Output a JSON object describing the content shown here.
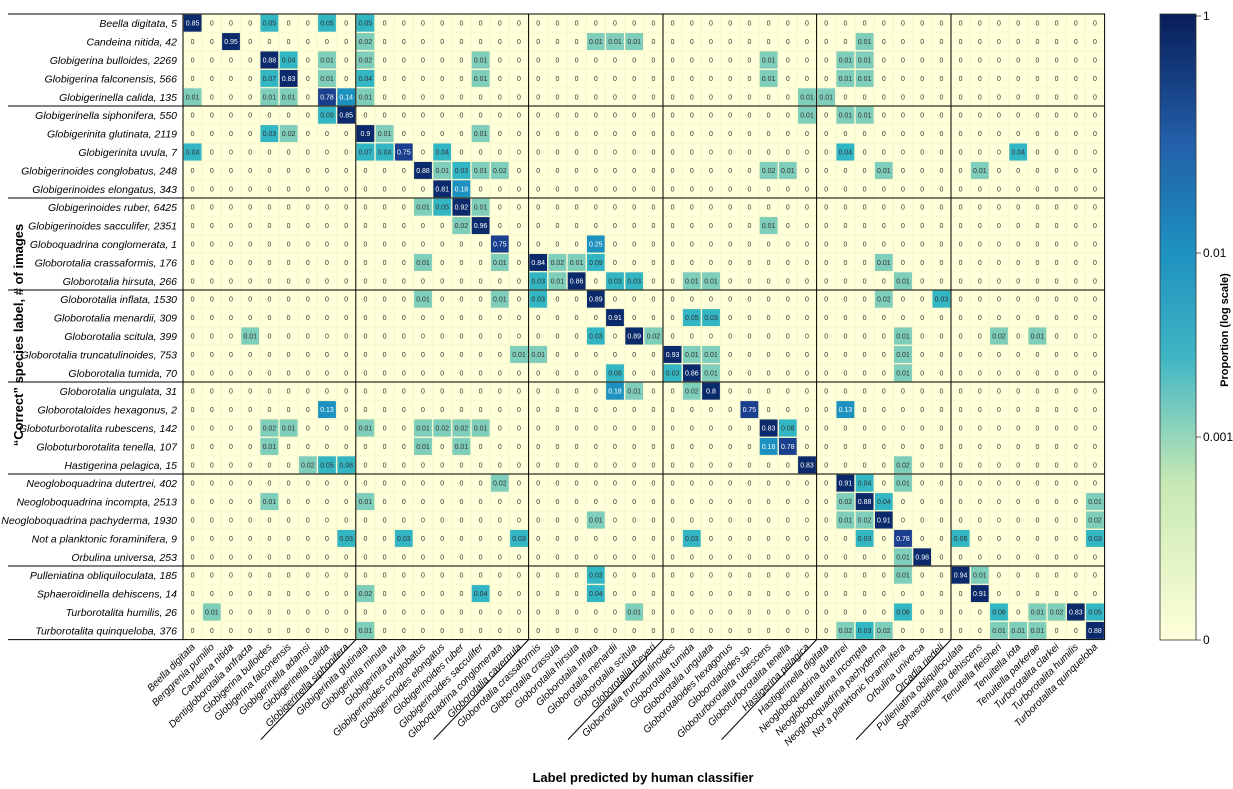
{
  "chart_data": {
    "type": "heatmap",
    "title": "",
    "xlabel": "Label predicted by human classifier",
    "ylabel": "“Correct” species label, # of images",
    "colorbar": {
      "label": "Proportion (log scale)",
      "ticks": [
        "1",
        "0.01",
        "0.001",
        "0"
      ],
      "scale": "log",
      "colors": [
        "#ffffd9",
        "#c7e9b4",
        "#41b6c4",
        "#1d91c0",
        "#225ea8",
        "#081d58"
      ]
    },
    "columns": [
      "Beella digitata",
      "Berggrenia pumilio",
      "Candeina nitida",
      "Dentigloborotalia anfracta",
      "Globigerina bulloides",
      "Globigerina falconensis",
      "Globigerinella adamsi",
      "Globigerinella calida",
      "Globigerinella siphonifera",
      "Globigerinita glutinata",
      "Globigerinita minuta",
      "Globigerinita uvula",
      "Globigerinoides conglobatus",
      "Globigerinoides elongatus",
      "Globigerinoides ruber",
      "Globigerinoides sacculifer",
      "Globoquadrina conglomerata",
      "Globorotalia cavernula",
      "Globorotalia crassaformis",
      "Globorotalia crassula",
      "Globorotalia hirsuta",
      "Globorotalia inflata",
      "Globorotalia menardii",
      "Globorotalia scitula",
      "Globorotalia theyeri",
      "Globorotalia truncatulinoides",
      "Globorotalia tumida",
      "Globorotalia ungulata",
      "Globorotaloides hexagonus",
      "Globorotaloides sp.",
      "Globoturborotalita rubescens",
      "Globoturborotalita tenella",
      "Hastigerina pelagica",
      "Hastigerinella digitata",
      "Neogloboquadrina dutertrei",
      "Neogloboquadrina incompta",
      "Neogloboquadrina pachyderma",
      "Not a planktonic foraminifera",
      "Orbulina universa",
      "Orcadia riedeli",
      "Pulleniatina obliquiloculata",
      "Sphaeroidinella dehiscens",
      "Tenuitella fleisheri",
      "Tenuitella iota",
      "Tenuitella parkerae",
      "Turborotalita clarkei",
      "Turborotalita humilis",
      "Turborotalita quinqueloba"
    ],
    "rows": [
      {
        "label": "Beella digitata, 5",
        "cells": [
          [
            0,
            "0.85"
          ],
          [
            4,
            "0.05"
          ],
          [
            7,
            "0.05"
          ],
          [
            9,
            "0.05"
          ]
        ]
      },
      {
        "label": "Candeina nitida, 42",
        "cells": [
          [
            2,
            "0.95"
          ],
          [
            9,
            "0.02"
          ],
          [
            21,
            "0.01"
          ],
          [
            22,
            "0.01"
          ],
          [
            23,
            "0.01"
          ],
          [
            35,
            "0.01"
          ]
        ]
      },
      {
        "label": "Globigerina bulloides, 2269",
        "cells": [
          [
            4,
            "0.88"
          ],
          [
            5,
            "0.04"
          ],
          [
            7,
            "0.01"
          ],
          [
            9,
            "0.02"
          ],
          [
            15,
            "0.01"
          ],
          [
            30,
            "0.01"
          ],
          [
            34,
            "0.01"
          ],
          [
            35,
            "0.01"
          ]
        ]
      },
      {
        "label": "Globigerina falconensis, 566",
        "cells": [
          [
            4,
            "0.07"
          ],
          [
            5,
            "0.83"
          ],
          [
            7,
            "0.01"
          ],
          [
            9,
            "0.04"
          ],
          [
            15,
            "0.01"
          ],
          [
            30,
            "0.01"
          ],
          [
            34,
            "0.01"
          ],
          [
            35,
            "0.01"
          ]
        ]
      },
      {
        "label": "Globigerinella calida, 135",
        "cells": [
          [
            0,
            "0.01"
          ],
          [
            4,
            "0.01"
          ],
          [
            5,
            "0.01"
          ],
          [
            7,
            "0.78"
          ],
          [
            8,
            "0.14"
          ],
          [
            9,
            "0.01"
          ],
          [
            32,
            "0.01"
          ],
          [
            33,
            "0.01"
          ]
        ]
      },
      {
        "label": "Globigerinella siphonifera, 550",
        "cells": [
          [
            7,
            "0.09"
          ],
          [
            8,
            "0.85"
          ],
          [
            32,
            "0.01"
          ],
          [
            34,
            "0.01"
          ],
          [
            35,
            "0.01"
          ]
        ]
      },
      {
        "label": "Globigerinita glutinata, 2119",
        "cells": [
          [
            4,
            "0.03"
          ],
          [
            5,
            "0.02"
          ],
          [
            9,
            "0.9"
          ],
          [
            10,
            "0.01"
          ],
          [
            15,
            "0.01"
          ]
        ]
      },
      {
        "label": "Globigerinita uvula, 7",
        "cells": [
          [
            0,
            "0.04"
          ],
          [
            9,
            "0.07"
          ],
          [
            10,
            "0.04"
          ],
          [
            11,
            "0.75"
          ],
          [
            13,
            "0.04"
          ],
          [
            34,
            "0.04"
          ],
          [
            43,
            "0.04"
          ]
        ]
      },
      {
        "label": "Globigerinoides conglobatus, 248",
        "cells": [
          [
            12,
            "0.88"
          ],
          [
            13,
            "0.01"
          ],
          [
            14,
            "0.03"
          ],
          [
            15,
            "0.01"
          ],
          [
            16,
            "0.02"
          ],
          [
            30,
            "0.02"
          ],
          [
            31,
            "0.01"
          ],
          [
            36,
            "0.01"
          ],
          [
            41,
            "0.01"
          ]
        ]
      },
      {
        "label": "Globigerinoides elongatus, 343",
        "cells": [
          [
            13,
            "0.81"
          ],
          [
            14,
            "0.18"
          ]
        ]
      },
      {
        "label": "Globigerinoides ruber, 6425",
        "cells": [
          [
            12,
            "0.01"
          ],
          [
            13,
            "0.05"
          ],
          [
            14,
            "0.92"
          ],
          [
            15,
            "0.01"
          ]
        ]
      },
      {
        "label": "Globigerinoides sacculifer, 2351",
        "cells": [
          [
            14,
            "0.02"
          ],
          [
            15,
            "0.96"
          ],
          [
            30,
            "0.01"
          ]
        ]
      },
      {
        "label": "Globoquadrina conglomerata, 1",
        "cells": [
          [
            16,
            "0.75"
          ],
          [
            21,
            "0.25"
          ]
        ]
      },
      {
        "label": "Globorotalia crassaformis, 176",
        "cells": [
          [
            12,
            "0.01"
          ],
          [
            16,
            "0.01"
          ],
          [
            18,
            "0.84"
          ],
          [
            19,
            "0.02"
          ],
          [
            20,
            "0.01"
          ],
          [
            21,
            "0.09"
          ],
          [
            36,
            "0.01"
          ]
        ]
      },
      {
        "label": "Globorotalia hirsuta, 266",
        "cells": [
          [
            18,
            "0.03"
          ],
          [
            19,
            "0.01"
          ],
          [
            20,
            "0.86"
          ],
          [
            22,
            "0.03"
          ],
          [
            23,
            "0.03"
          ],
          [
            26,
            "0.01"
          ],
          [
            27,
            "0.01"
          ],
          [
            37,
            "0.01"
          ]
        ]
      },
      {
        "label": "Globorotalia inflata, 1530",
        "cells": [
          [
            12,
            "0.01"
          ],
          [
            16,
            "0.01"
          ],
          [
            18,
            "0.03"
          ],
          [
            21,
            "0.89"
          ],
          [
            36,
            "0.02"
          ],
          [
            39,
            "0.03"
          ]
        ]
      },
      {
        "label": "Globorotalia menardii, 309",
        "cells": [
          [
            22,
            "0.91"
          ],
          [
            26,
            "0.05"
          ],
          [
            27,
            "0.03"
          ]
        ]
      },
      {
        "label": "Globorotalia scitula, 399",
        "cells": [
          [
            3,
            "0.01"
          ],
          [
            21,
            "0.03"
          ],
          [
            23,
            "0.89"
          ],
          [
            24,
            "0.02"
          ],
          [
            37,
            "0.01"
          ],
          [
            42,
            "0.02"
          ],
          [
            44,
            "0.01"
          ]
        ]
      },
      {
        "label": "Globorotalia truncatulinoides, 753",
        "cells": [
          [
            17,
            "0.01"
          ],
          [
            18,
            "0.01"
          ],
          [
            25,
            "0.93"
          ],
          [
            26,
            "0.01"
          ],
          [
            27,
            "0.01"
          ],
          [
            37,
            "0.01"
          ]
        ]
      },
      {
        "label": "Globorotalia tumida, 70",
        "cells": [
          [
            22,
            "0.08"
          ],
          [
            25,
            "0.03"
          ],
          [
            26,
            "0.86"
          ],
          [
            27,
            "0.01"
          ],
          [
            37,
            "0.01"
          ]
        ]
      },
      {
        "label": "Globorotalia ungulata, 31",
        "cells": [
          [
            22,
            "0.18"
          ],
          [
            23,
            "0.01"
          ],
          [
            26,
            "0.02"
          ],
          [
            27,
            "0.8"
          ]
        ]
      },
      {
        "label": "Globorotaloides hexagonus, 2",
        "cells": [
          [
            7,
            "0.13"
          ],
          [
            29,
            "0.75"
          ],
          [
            34,
            "0.13"
          ]
        ]
      },
      {
        "label": "Globoturborotalita rubescens, 142",
        "cells": [
          [
            4,
            "0.02"
          ],
          [
            5,
            "0.01"
          ],
          [
            9,
            "0.01"
          ],
          [
            12,
            "0.01"
          ],
          [
            13,
            "0.02"
          ],
          [
            14,
            "0.02"
          ],
          [
            15,
            "0.01"
          ],
          [
            30,
            "0.83"
          ],
          [
            31,
            "0.08"
          ]
        ]
      },
      {
        "label": "Globoturborotalita tenella, 107",
        "cells": [
          [
            4,
            "0.01"
          ],
          [
            12,
            "0.01"
          ],
          [
            14,
            "0.01"
          ],
          [
            30,
            "0.16"
          ],
          [
            31,
            "0.78"
          ]
        ]
      },
      {
        "label": "Hastigerina pelagica, 15",
        "cells": [
          [
            6,
            "0.02"
          ],
          [
            7,
            "0.05"
          ],
          [
            8,
            "0.08"
          ],
          [
            32,
            "0.83"
          ],
          [
            37,
            "0.02"
          ]
        ]
      },
      {
        "label": "Neogloboquadrina dutertrei, 402",
        "cells": [
          [
            16,
            "0.02"
          ],
          [
            34,
            "0.91"
          ],
          [
            35,
            "0.04"
          ],
          [
            37,
            "0.01"
          ]
        ]
      },
      {
        "label": "Neogloboquadrina incompta, 2513",
        "cells": [
          [
            4,
            "0.01"
          ],
          [
            9,
            "0.01"
          ],
          [
            34,
            "0.02"
          ],
          [
            35,
            "0.88"
          ],
          [
            36,
            "0.04"
          ],
          [
            47,
            "0.01"
          ]
        ]
      },
      {
        "label": "Neogloboquadrina pachyderma, 1930",
        "cells": [
          [
            21,
            "0.01"
          ],
          [
            34,
            "0.01"
          ],
          [
            35,
            "0.02"
          ],
          [
            36,
            "0.91"
          ],
          [
            47,
            "0.02"
          ]
        ]
      },
      {
        "label": "Not a planktonic foraminifera, 9",
        "cells": [
          [
            8,
            "0.03"
          ],
          [
            11,
            "0.03"
          ],
          [
            17,
            "0.03"
          ],
          [
            26,
            "0.03"
          ],
          [
            35,
            "0.03"
          ],
          [
            37,
            "0.78"
          ],
          [
            40,
            "0.06"
          ],
          [
            47,
            "0.03"
          ]
        ]
      },
      {
        "label": "Orbulina universa, 253",
        "cells": [
          [
            37,
            "0.01"
          ],
          [
            38,
            "0.98"
          ]
        ]
      },
      {
        "label": "Pulleniatina obliquiloculata, 185",
        "cells": [
          [
            21,
            "0.03"
          ],
          [
            37,
            "0.01"
          ],
          [
            40,
            "0.94"
          ],
          [
            41,
            "0.01"
          ]
        ]
      },
      {
        "label": "Sphaeroidinella dehiscens, 14",
        "cells": [
          [
            9,
            "0.02"
          ],
          [
            15,
            "0.04"
          ],
          [
            21,
            "0.04"
          ],
          [
            41,
            "0.91"
          ]
        ]
      },
      {
        "label": "Turborotalita humilis, 26",
        "cells": [
          [
            1,
            "0.01"
          ],
          [
            23,
            "0.01"
          ],
          [
            37,
            "0.06"
          ],
          [
            42,
            "0.06"
          ],
          [
            44,
            "0.01"
          ],
          [
            45,
            "0.02"
          ],
          [
            46,
            "0.83"
          ],
          [
            47,
            "0.05"
          ]
        ]
      },
      {
        "label": "Turborotalita quinqueloba, 376",
        "cells": [
          [
            9,
            "0.01"
          ],
          [
            34,
            "0.02"
          ],
          [
            35,
            "0.03"
          ],
          [
            36,
            "0.02"
          ],
          [
            42,
            "0.01"
          ],
          [
            43,
            "0.01"
          ],
          [
            44,
            "0.01"
          ],
          [
            47,
            "0.88"
          ]
        ]
      }
    ],
    "zero_label": "0",
    "group_row_breaks": [
      5,
      10,
      15,
      20,
      25,
      30
    ],
    "group_col_breaks": [
      9,
      18,
      25,
      33,
      40
    ]
  }
}
